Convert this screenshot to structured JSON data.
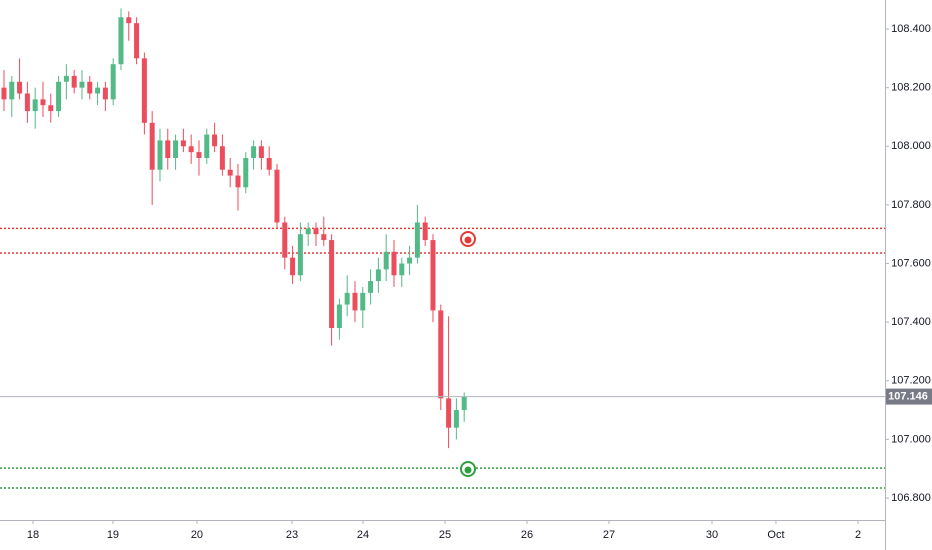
{
  "chart_data": {
    "type": "candlestick",
    "up_color": "#53b987",
    "down_color": "#eb4d5c",
    "x": [
      0,
      1,
      2,
      3,
      4,
      5,
      6,
      7,
      8,
      9,
      10,
      11,
      12,
      13,
      14,
      15,
      16,
      17,
      18,
      19,
      20,
      21,
      22,
      23,
      24,
      25,
      26,
      27,
      28,
      29,
      30,
      31,
      32,
      33,
      34,
      35,
      36,
      37,
      38,
      39,
      40,
      41,
      42,
      43,
      44,
      45,
      46,
      47,
      48,
      49,
      50,
      51,
      52,
      53,
      54,
      55,
      56,
      57,
      58,
      59
    ],
    "open": [
      108.2,
      108.16,
      108.22,
      108.18,
      108.12,
      108.16,
      108.14,
      108.12,
      108.22,
      108.24,
      108.2,
      108.22,
      108.18,
      108.2,
      108.16,
      108.28,
      108.44,
      108.42,
      108.3,
      108.08,
      107.92,
      108.02,
      107.96,
      108.02,
      108.0,
      107.98,
      107.96,
      108.04,
      108.0,
      107.92,
      107.9,
      107.86,
      107.96,
      108.0,
      107.96,
      107.92,
      107.74,
      107.62,
      107.56,
      107.7,
      107.72,
      107.7,
      107.68,
      107.38,
      107.46,
      107.5,
      107.44,
      107.5,
      107.54,
      107.58,
      107.64,
      107.56,
      107.6,
      107.62,
      107.74,
      107.68,
      107.44,
      107.14,
      107.04,
      107.1
    ],
    "high": [
      108.26,
      108.24,
      108.3,
      108.22,
      108.2,
      108.22,
      108.18,
      108.24,
      108.28,
      108.26,
      108.26,
      108.24,
      108.22,
      108.22,
      108.3,
      108.47,
      108.46,
      108.44,
      108.32,
      108.12,
      108.06,
      108.06,
      108.04,
      108.06,
      108.04,
      108.02,
      108.06,
      108.08,
      108.04,
      107.96,
      107.94,
      107.98,
      108.02,
      108.02,
      108.0,
      107.94,
      107.76,
      107.66,
      107.74,
      107.74,
      107.74,
      107.76,
      107.7,
      107.48,
      107.56,
      107.54,
      107.52,
      107.58,
      107.62,
      107.7,
      107.68,
      107.62,
      107.66,
      107.8,
      107.76,
      107.7,
      107.46,
      107.42,
      107.14,
      107.16
    ],
    "low": [
      108.12,
      108.1,
      108.16,
      108.08,
      108.06,
      108.1,
      108.08,
      108.1,
      108.16,
      108.18,
      108.16,
      108.16,
      108.14,
      108.12,
      108.14,
      108.26,
      108.36,
      108.28,
      108.04,
      107.8,
      107.88,
      107.92,
      107.92,
      107.98,
      107.94,
      107.9,
      107.94,
      107.98,
      107.9,
      107.86,
      107.78,
      107.84,
      107.92,
      107.92,
      107.9,
      107.72,
      107.58,
      107.53,
      107.54,
      107.66,
      107.66,
      107.66,
      107.32,
      107.34,
      107.42,
      107.4,
      107.38,
      107.46,
      107.5,
      107.54,
      107.52,
      107.52,
      107.56,
      107.6,
      107.66,
      107.4,
      107.1,
      106.97,
      107.0,
      107.06
    ],
    "close": [
      108.16,
      108.22,
      108.18,
      108.12,
      108.16,
      108.14,
      108.12,
      108.22,
      108.24,
      108.2,
      108.22,
      108.18,
      108.2,
      108.16,
      108.28,
      108.44,
      108.42,
      108.3,
      108.08,
      107.92,
      108.02,
      107.96,
      108.02,
      108.0,
      107.98,
      107.96,
      108.04,
      108.0,
      107.92,
      107.9,
      107.86,
      107.96,
      108.0,
      107.96,
      107.92,
      107.74,
      107.62,
      107.56,
      107.7,
      107.72,
      107.7,
      107.68,
      107.38,
      107.46,
      107.5,
      107.44,
      107.5,
      107.54,
      107.58,
      107.64,
      107.56,
      107.6,
      107.62,
      107.74,
      107.68,
      107.44,
      107.14,
      107.04,
      107.1,
      107.146
    ],
    "levels": [
      {
        "value": 107.72,
        "color": "#e53935"
      },
      {
        "value": 107.636,
        "color": "#e53935"
      },
      {
        "value": 106.902,
        "color": "#2e9e3e"
      },
      {
        "value": 106.834,
        "color": "#2e9e3e"
      }
    ],
    "xlim": [
      -0.51,
      112.95
    ],
    "xticks": [
      {
        "value": 3.72,
        "label": "18"
      },
      {
        "value": 13.97,
        "label": "19"
      },
      {
        "value": 24.74,
        "label": "20"
      },
      {
        "value": 36.92,
        "label": "23"
      },
      {
        "value": 46.03,
        "label": "24"
      },
      {
        "value": 56.54,
        "label": "25"
      },
      {
        "value": 67.05,
        "label": "26"
      },
      {
        "value": 77.56,
        "label": "27"
      },
      {
        "value": 90.77,
        "label": "30"
      },
      {
        "value": 98.97,
        "label": "Oct"
      },
      {
        "value": 109.49,
        "label": "2"
      }
    ],
    "ylim": [
      106.725,
      108.499
    ],
    "yticks": [
      {
        "value": 106.8,
        "label": "106.800"
      },
      {
        "value": 107.0,
        "label": "107.000"
      },
      {
        "value": 107.2,
        "label": "107.200"
      },
      {
        "value": 107.4,
        "label": "107.400"
      },
      {
        "value": 107.6,
        "label": "107.600"
      },
      {
        "value": 107.8,
        "label": "107.800"
      },
      {
        "value": 108.0,
        "label": "108.000"
      },
      {
        "value": 108.2,
        "label": "108.200"
      },
      {
        "value": 108.4,
        "label": "108.400"
      }
    ]
  }
}
